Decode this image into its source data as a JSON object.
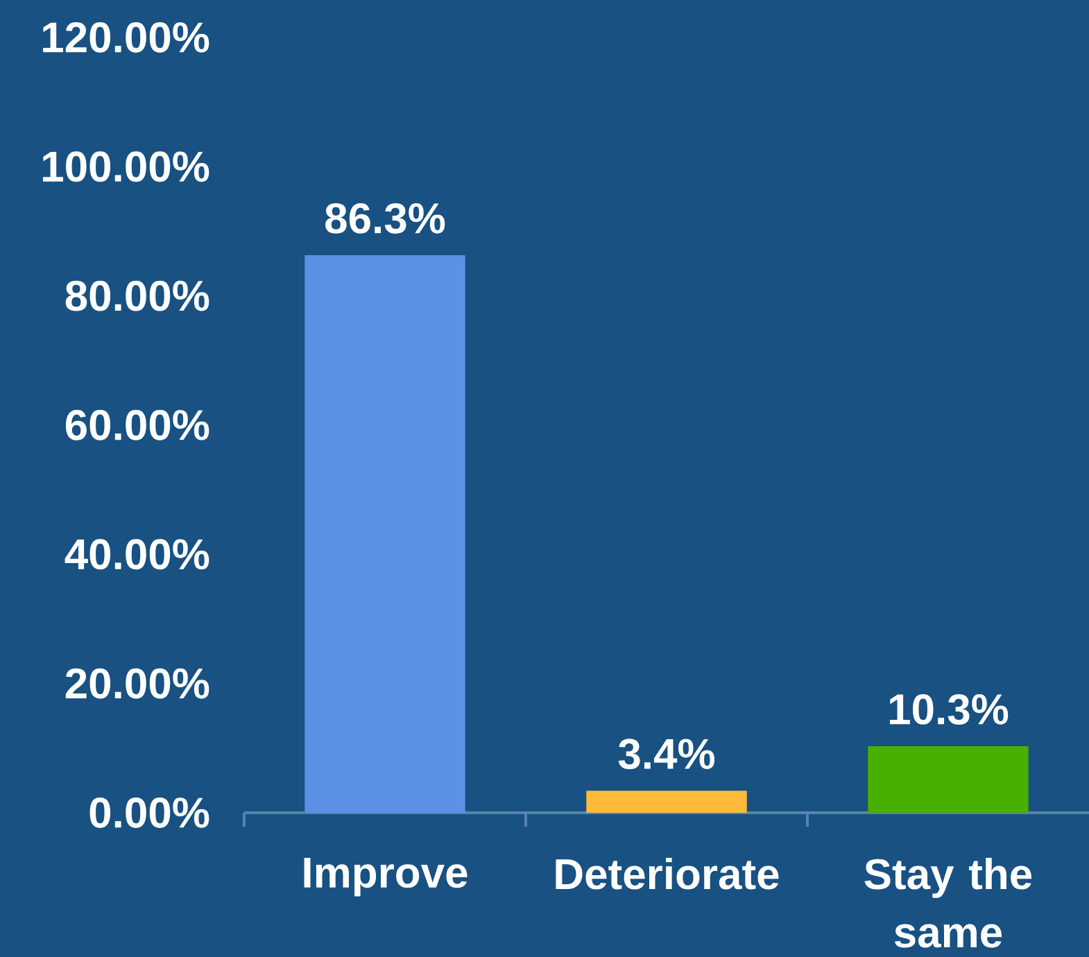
{
  "chart_data": {
    "type": "bar",
    "categories": [
      "Improve",
      "Deteriorate",
      "Stay the same"
    ],
    "values": [
      86.3,
      3.4,
      10.3
    ],
    "colors": [
      "#5b90e4",
      "#ffba3a",
      "#47b000"
    ],
    "value_labels": [
      "86.3%",
      "3.4%",
      "10.3%"
    ],
    "ylim": [
      0,
      120
    ],
    "yticks": [
      {
        "value": 0,
        "label": "0.00%"
      },
      {
        "value": 20,
        "label": "20.00%"
      },
      {
        "value": 40,
        "label": "40.00%"
      },
      {
        "value": 60,
        "label": "60.00%"
      },
      {
        "value": 80,
        "label": "80.00%"
      },
      {
        "value": 100,
        "label": "100.00%"
      },
      {
        "value": 120,
        "label": "120.00%"
      }
    ]
  }
}
